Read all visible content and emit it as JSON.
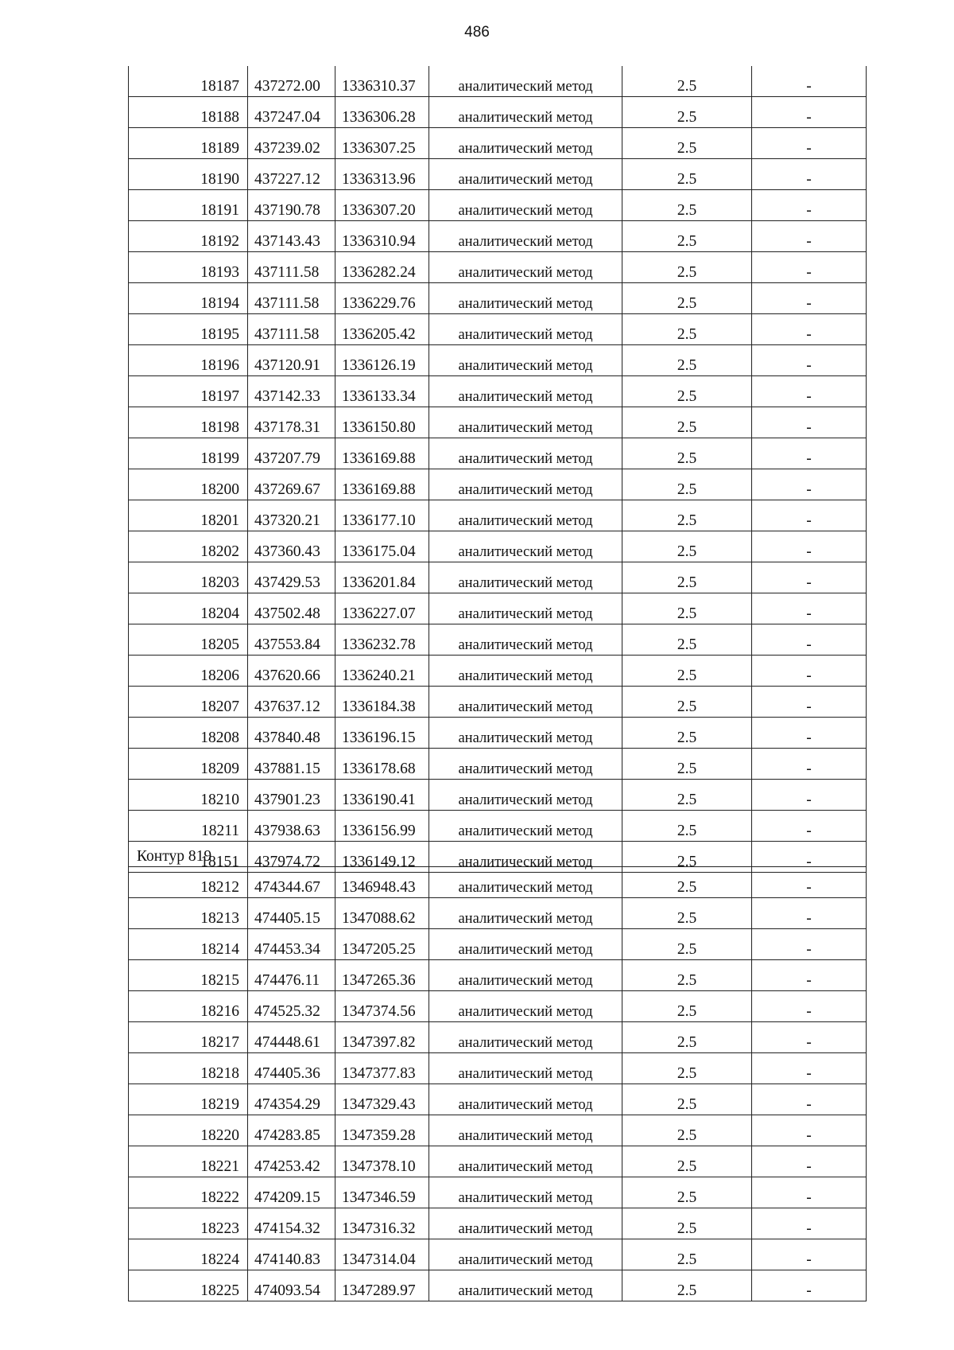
{
  "page_number": "486",
  "tables": [
    {
      "rows": [
        [
          "18187",
          "437272.00",
          "1336310.37",
          "аналитический метод",
          "2.5",
          "-"
        ],
        [
          "18188",
          "437247.04",
          "1336306.28",
          "аналитический метод",
          "2.5",
          "-"
        ],
        [
          "18189",
          "437239.02",
          "1336307.25",
          "аналитический метод",
          "2.5",
          "-"
        ],
        [
          "18190",
          "437227.12",
          "1336313.96",
          "аналитический метод",
          "2.5",
          "-"
        ],
        [
          "18191",
          "437190.78",
          "1336307.20",
          "аналитический метод",
          "2.5",
          "-"
        ],
        [
          "18192",
          "437143.43",
          "1336310.94",
          "аналитический метод",
          "2.5",
          "-"
        ],
        [
          "18193",
          "437111.58",
          "1336282.24",
          "аналитический метод",
          "2.5",
          "-"
        ],
        [
          "18194",
          "437111.58",
          "1336229.76",
          "аналитический метод",
          "2.5",
          "-"
        ],
        [
          "18195",
          "437111.58",
          "1336205.42",
          "аналитический метод",
          "2.5",
          "-"
        ],
        [
          "18196",
          "437120.91",
          "1336126.19",
          "аналитический метод",
          "2.5",
          "-"
        ],
        [
          "18197",
          "437142.33",
          "1336133.34",
          "аналитический метод",
          "2.5",
          "-"
        ],
        [
          "18198",
          "437178.31",
          "1336150.80",
          "аналитический метод",
          "2.5",
          "-"
        ],
        [
          "18199",
          "437207.79",
          "1336169.88",
          "аналитический метод",
          "2.5",
          "-"
        ],
        [
          "18200",
          "437269.67",
          "1336169.88",
          "аналитический метод",
          "2.5",
          "-"
        ],
        [
          "18201",
          "437320.21",
          "1336177.10",
          "аналитический метод",
          "2.5",
          "-"
        ],
        [
          "18202",
          "437360.43",
          "1336175.04",
          "аналитический метод",
          "2.5",
          "-"
        ],
        [
          "18203",
          "437429.53",
          "1336201.84",
          "аналитический метод",
          "2.5",
          "-"
        ],
        [
          "18204",
          "437502.48",
          "1336227.07",
          "аналитический метод",
          "2.5",
          "-"
        ],
        [
          "18205",
          "437553.84",
          "1336232.78",
          "аналитический метод",
          "2.5",
          "-"
        ],
        [
          "18206",
          "437620.66",
          "1336240.21",
          "аналитический метод",
          "2.5",
          "-"
        ],
        [
          "18207",
          "437637.12",
          "1336184.38",
          "аналитический метод",
          "2.5",
          "-"
        ],
        [
          "18208",
          "437840.48",
          "1336196.15",
          "аналитический метод",
          "2.5",
          "-"
        ],
        [
          "18209",
          "437881.15",
          "1336178.68",
          "аналитический метод",
          "2.5",
          "-"
        ],
        [
          "18210",
          "437901.23",
          "1336190.41",
          "аналитический метод",
          "2.5",
          "-"
        ],
        [
          "18211",
          "437938.63",
          "1336156.99",
          "аналитический метод",
          "2.5",
          "-"
        ],
        [
          "18151",
          "437974.72",
          "1336149.12",
          "аналитический метод",
          "2.5",
          "-"
        ]
      ]
    },
    {
      "title": "Контур 819",
      "rows": [
        [
          "18212",
          "474344.67",
          "1346948.43",
          "аналитический метод",
          "2.5",
          "-"
        ],
        [
          "18213",
          "474405.15",
          "1347088.62",
          "аналитический метод",
          "2.5",
          "-"
        ],
        [
          "18214",
          "474453.34",
          "1347205.25",
          "аналитический метод",
          "2.5",
          "-"
        ],
        [
          "18215",
          "474476.11",
          "1347265.36",
          "аналитический метод",
          "2.5",
          "-"
        ],
        [
          "18216",
          "474525.32",
          "1347374.56",
          "аналитический метод",
          "2.5",
          "-"
        ],
        [
          "18217",
          "474448.61",
          "1347397.82",
          "аналитический метод",
          "2.5",
          "-"
        ],
        [
          "18218",
          "474405.36",
          "1347377.83",
          "аналитический метод",
          "2.5",
          "-"
        ],
        [
          "18219",
          "474354.29",
          "1347329.43",
          "аналитический метод",
          "2.5",
          "-"
        ],
        [
          "18220",
          "474283.85",
          "1347359.28",
          "аналитический метод",
          "2.5",
          "-"
        ],
        [
          "18221",
          "474253.42",
          "1347378.10",
          "аналитический метод",
          "2.5",
          "-"
        ],
        [
          "18222",
          "474209.15",
          "1347346.59",
          "аналитический метод",
          "2.5",
          "-"
        ],
        [
          "18223",
          "474154.32",
          "1347316.32",
          "аналитический метод",
          "2.5",
          "-"
        ],
        [
          "18224",
          "474140.83",
          "1347314.04",
          "аналитический метод",
          "2.5",
          "-"
        ],
        [
          "18225",
          "474093.54",
          "1347289.97",
          "аналитический метод",
          "2.5",
          "-"
        ]
      ]
    }
  ]
}
